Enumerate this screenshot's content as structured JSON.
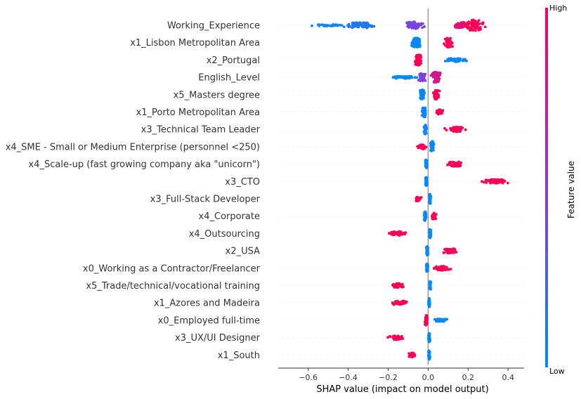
{
  "chart_data": {
    "type": "scatter",
    "subtype": "shap-beeswarm",
    "xlabel": "SHAP value (impact on model output)",
    "xlim": [
      -0.75,
      0.48
    ],
    "xticks": [
      "−0.6",
      "−0.4",
      "−0.2",
      "0.0",
      "0.2",
      "0.4"
    ],
    "xtick_values": [
      -0.6,
      -0.4,
      -0.2,
      0.0,
      0.2,
      0.4
    ],
    "colorbar": {
      "title": "Feature value",
      "high": "High",
      "low": "Low",
      "high_color": "#ff0052",
      "low_color": "#008bfb"
    },
    "features": [
      {
        "name": "Working_Experience",
        "clusters": [
          {
            "center": -0.34,
            "spread": 0.1,
            "height": 0.42,
            "n": 90,
            "c": 0.12
          },
          {
            "center": -0.5,
            "spread": 0.12,
            "height": 0.12,
            "n": 30,
            "c": 0.05
          },
          {
            "center": -0.07,
            "spread": 0.06,
            "height": 0.5,
            "n": 60,
            "c": 0.45
          },
          {
            "center": 0.17,
            "spread": 0.06,
            "height": 0.4,
            "n": 50,
            "c": 0.88
          },
          {
            "center": 0.23,
            "spread": 0.06,
            "height": 0.8,
            "n": 90,
            "c": 1.0
          }
        ]
      },
      {
        "name": "x1_Lisbon Metropolitan Area",
        "clusters": [
          {
            "center": -0.06,
            "spread": 0.03,
            "height": 0.7,
            "n": 70,
            "c": 0.0
          },
          {
            "center": 0.1,
            "spread": 0.03,
            "height": 0.7,
            "n": 60,
            "c": 1.0
          }
        ]
      },
      {
        "name": "x2_Portugal",
        "clusters": [
          {
            "center": -0.05,
            "spread": 0.025,
            "height": 0.8,
            "n": 80,
            "c": 1.0
          },
          {
            "center": 0.14,
            "spread": 0.07,
            "height": 0.25,
            "n": 50,
            "c": 0.0
          }
        ]
      },
      {
        "name": "English_Level",
        "clusters": [
          {
            "center": -0.12,
            "spread": 0.08,
            "height": 0.18,
            "n": 50,
            "c": 0.0
          },
          {
            "center": -0.03,
            "spread": 0.02,
            "height": 0.6,
            "n": 40,
            "c": 0.45
          },
          {
            "center": 0.04,
            "spread": 0.03,
            "height": 0.8,
            "n": 60,
            "c": 0.8
          }
        ]
      },
      {
        "name": "x5_Masters degree",
        "clusters": [
          {
            "center": -0.03,
            "spread": 0.015,
            "height": 0.75,
            "n": 60,
            "c": 0.0
          },
          {
            "center": 0.04,
            "spread": 0.02,
            "height": 0.7,
            "n": 50,
            "c": 1.0
          }
        ]
      },
      {
        "name": "x1_Porto Metropolitan Area",
        "clusters": [
          {
            "center": -0.02,
            "spread": 0.012,
            "height": 0.75,
            "n": 60,
            "c": 0.0
          },
          {
            "center": 0.06,
            "spread": 0.025,
            "height": 0.35,
            "n": 35,
            "c": 1.0
          }
        ]
      },
      {
        "name": "x3_Technical Team Leader",
        "clusters": [
          {
            "center": -0.015,
            "spread": 0.008,
            "height": 0.7,
            "n": 50,
            "c": 0.0
          },
          {
            "center": 0.14,
            "spread": 0.06,
            "height": 0.35,
            "n": 55,
            "c": 1.0
          }
        ]
      },
      {
        "name": "x4_SME - Small or Medium Enterprise (personnel <250)",
        "clusters": [
          {
            "center": -0.03,
            "spread": 0.03,
            "height": 0.35,
            "n": 35,
            "c": 1.0
          },
          {
            "center": 0.02,
            "spread": 0.01,
            "height": 0.8,
            "n": 45,
            "c": 0.0
          }
        ]
      },
      {
        "name": "x4_Scale-up (fast growing company aka \"unicorn\")",
        "clusters": [
          {
            "center": -0.01,
            "spread": 0.007,
            "height": 0.65,
            "n": 45,
            "c": 0.0
          },
          {
            "center": 0.14,
            "spread": 0.05,
            "height": 0.35,
            "n": 55,
            "c": 1.0
          }
        ]
      },
      {
        "name": "x3_CTO",
        "clusters": [
          {
            "center": -0.01,
            "spread": 0.006,
            "height": 0.6,
            "n": 45,
            "c": 0.0
          },
          {
            "center": 0.33,
            "spread": 0.07,
            "height": 0.3,
            "n": 70,
            "c": 1.0
          }
        ]
      },
      {
        "name": "x3_Full-Stack Developer",
        "clusters": [
          {
            "center": -0.05,
            "spread": 0.02,
            "height": 0.35,
            "n": 30,
            "c": 1.0
          },
          {
            "center": 0.01,
            "spread": 0.006,
            "height": 0.7,
            "n": 45,
            "c": 0.0
          }
        ]
      },
      {
        "name": "x4_Corporate",
        "clusters": [
          {
            "center": -0.015,
            "spread": 0.008,
            "height": 0.65,
            "n": 45,
            "c": 0.0
          },
          {
            "center": 0.03,
            "spread": 0.015,
            "height": 0.5,
            "n": 35,
            "c": 1.0
          }
        ]
      },
      {
        "name": "x4_Outsourcing",
        "clusters": [
          {
            "center": -0.15,
            "spread": 0.05,
            "height": 0.3,
            "n": 45,
            "c": 1.0
          },
          {
            "center": 0.01,
            "spread": 0.006,
            "height": 0.65,
            "n": 45,
            "c": 0.0
          }
        ]
      },
      {
        "name": "x2_USA",
        "clusters": [
          {
            "center": -0.005,
            "spread": 0.006,
            "height": 0.65,
            "n": 45,
            "c": 0.0
          },
          {
            "center": 0.11,
            "spread": 0.05,
            "height": 0.35,
            "n": 55,
            "c": 1.0
          }
        ]
      },
      {
        "name": "x0_Working as a Contractor/Freelancer",
        "clusters": [
          {
            "center": -0.005,
            "spread": 0.006,
            "height": 0.65,
            "n": 45,
            "c": 0.0
          },
          {
            "center": 0.07,
            "spread": 0.05,
            "height": 0.3,
            "n": 55,
            "c": 1.0
          }
        ]
      },
      {
        "name": "x5_Trade/technical/vocational training",
        "clusters": [
          {
            "center": -0.15,
            "spread": 0.04,
            "height": 0.3,
            "n": 35,
            "c": 1.0
          },
          {
            "center": 0.01,
            "spread": 0.005,
            "height": 0.65,
            "n": 45,
            "c": 0.0
          }
        ]
      },
      {
        "name": "x1_Azores and Madeira",
        "clusters": [
          {
            "center": -0.14,
            "spread": 0.05,
            "height": 0.3,
            "n": 40,
            "c": 1.0
          },
          {
            "center": 0.005,
            "spread": 0.005,
            "height": 0.65,
            "n": 45,
            "c": 0.0
          }
        ]
      },
      {
        "name": "x0_Employed full-time",
        "clusters": [
          {
            "center": -0.01,
            "spread": 0.008,
            "height": 0.75,
            "n": 50,
            "c": 1.0
          },
          {
            "center": 0.06,
            "spread": 0.04,
            "height": 0.2,
            "n": 35,
            "c": 0.0
          }
        ]
      },
      {
        "name": "x3_UX/UI Designer",
        "clusters": [
          {
            "center": -0.16,
            "spread": 0.04,
            "height": 0.3,
            "n": 45,
            "c": 1.0
          },
          {
            "center": 0.005,
            "spread": 0.005,
            "height": 0.65,
            "n": 45,
            "c": 0.0
          }
        ]
      },
      {
        "name": "x1_South",
        "clusters": [
          {
            "center": -0.08,
            "spread": 0.025,
            "height": 0.3,
            "n": 35,
            "c": 1.0
          },
          {
            "center": 0.005,
            "spread": 0.005,
            "height": 0.65,
            "n": 45,
            "c": 0.0
          }
        ]
      }
    ]
  }
}
